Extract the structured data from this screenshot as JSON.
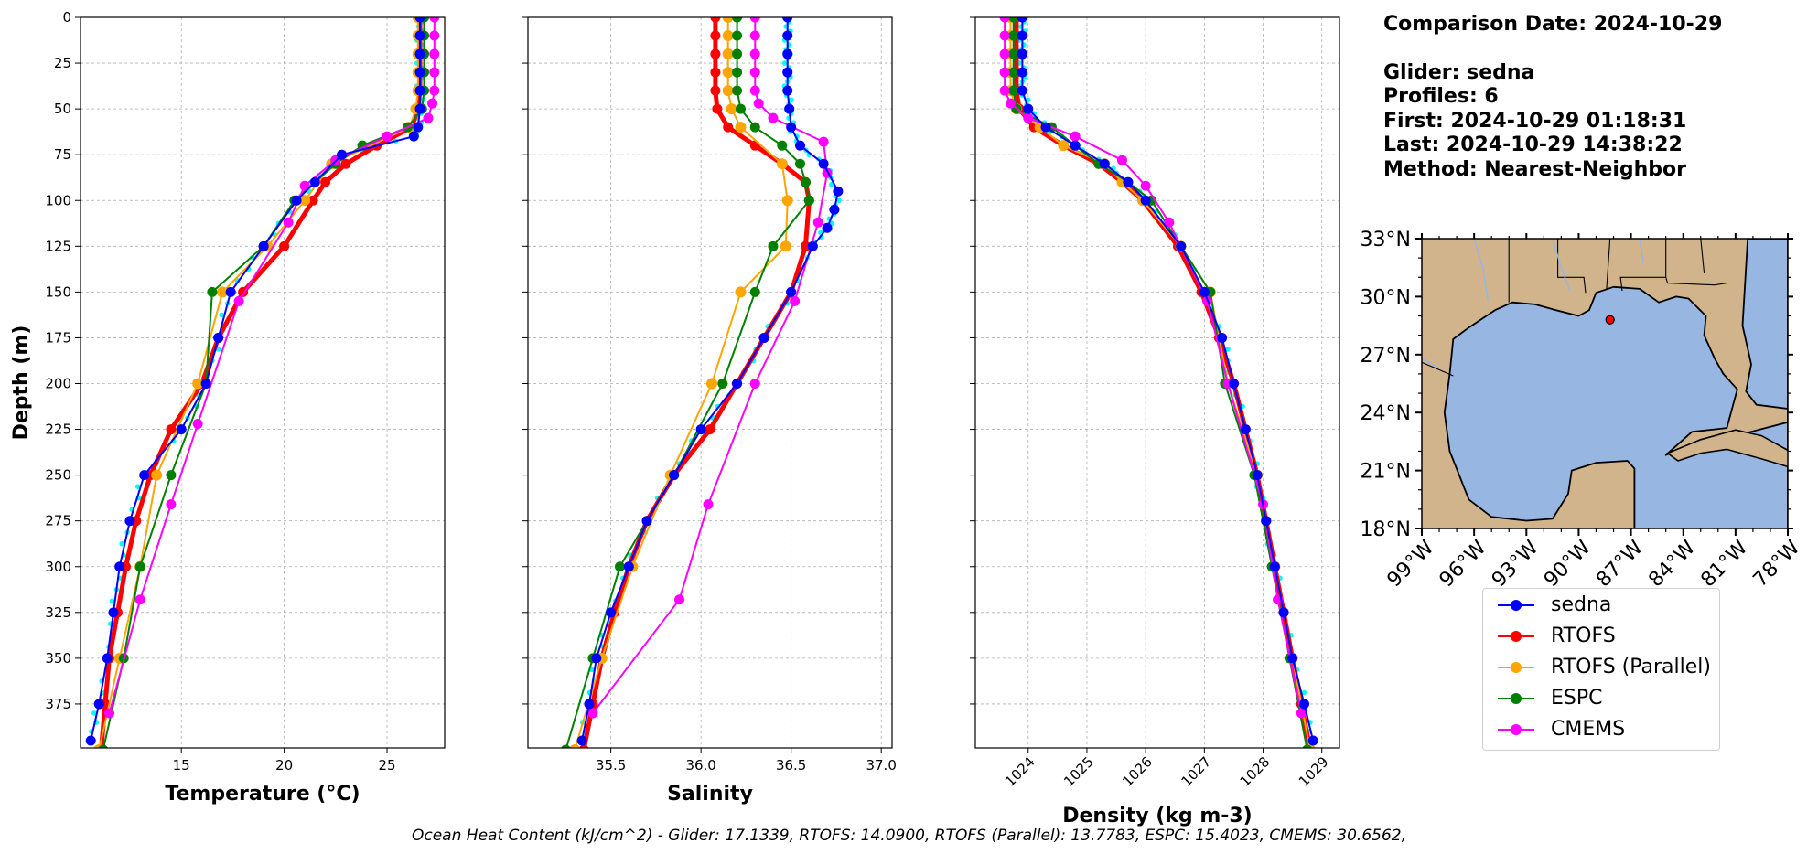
{
  "info": {
    "comparison": "Comparison Date: 2024-10-29",
    "glider": "Glider: sedna",
    "profiles": "Profiles: 6",
    "first": "First: 2024-10-29 01:18:31",
    "last": "Last: 2024-10-29 14:38:22",
    "method": "Method: Nearest-Neighbor"
  },
  "footer": "Ocean Heat Content (kJ/cm^2) - Glider: 17.1339,  RTOFS: 14.0900,  RTOFS (Parallel): 13.7783,  ESPC: 15.4023,  CMEMS: 30.6562,",
  "legend": [
    {
      "name": "sedna",
      "color": "#0000ff"
    },
    {
      "name": "RTOFS",
      "color": "#ff0000"
    },
    {
      "name": "RTOFS (Parallel)",
      "color": "#ffa500"
    },
    {
      "name": "ESPC",
      "color": "#008000"
    },
    {
      "name": "CMEMS",
      "color": "#ff00ff"
    }
  ],
  "chart_data": [
    {
      "type": "line",
      "xlabel": "Temperature (°C)",
      "ylabel": "Depth (m)",
      "xlim": [
        10.1,
        27.8
      ],
      "ylim": [
        399,
        0
      ],
      "invert_y": true,
      "xticks": [
        15,
        20,
        25
      ],
      "yticks": [
        0,
        25,
        50,
        75,
        100,
        125,
        150,
        175,
        200,
        225,
        250,
        275,
        300,
        325,
        350,
        375
      ],
      "grid": true,
      "series": [
        {
          "name": "sedna",
          "depth": [
            0,
            10,
            20,
            30,
            40,
            50,
            60,
            65,
            75,
            90,
            100,
            125,
            150,
            175,
            200,
            225,
            250,
            275,
            300,
            325,
            350,
            375,
            395
          ],
          "values": [
            26.6,
            26.6,
            26.6,
            26.6,
            26.6,
            26.6,
            26.5,
            26.3,
            22.8,
            21.5,
            20.6,
            19.0,
            17.4,
            16.8,
            16.2,
            15.0,
            13.2,
            12.5,
            12.0,
            11.7,
            11.4,
            11.0,
            10.6
          ]
        },
        {
          "name": "RTOFS",
          "depth": [
            0,
            10,
            20,
            30,
            40,
            50,
            60,
            70,
            80,
            90,
            100,
            125,
            150,
            175,
            200,
            225,
            250,
            275,
            300,
            325,
            350,
            375,
            400
          ],
          "values": [
            26.6,
            26.6,
            26.6,
            26.6,
            26.6,
            26.5,
            26.2,
            24.5,
            23.0,
            22.0,
            21.4,
            20.0,
            18.0,
            16.8,
            16.0,
            14.5,
            13.5,
            12.8,
            12.3,
            11.9,
            11.5,
            11.3,
            11.1
          ]
        },
        {
          "name": "RTOFS (Parallel)",
          "depth": [
            0,
            10,
            20,
            30,
            40,
            50,
            60,
            80,
            100,
            125,
            150,
            200,
            250,
            300,
            350,
            400
          ],
          "values": [
            26.5,
            26.5,
            26.5,
            26.5,
            26.5,
            26.4,
            26.1,
            22.3,
            21.0,
            19.2,
            17.0,
            15.8,
            13.8,
            13.0,
            12.0,
            11.0
          ]
        },
        {
          "name": "ESPC",
          "depth": [
            0,
            10,
            20,
            30,
            40,
            50,
            60,
            70,
            80,
            100,
            125,
            150,
            200,
            250,
            300,
            350,
            400
          ],
          "values": [
            26.8,
            26.8,
            26.8,
            26.8,
            26.8,
            26.7,
            26.0,
            23.8,
            22.5,
            20.5,
            19.0,
            16.5,
            16.2,
            14.5,
            13.0,
            12.2,
            11.2
          ]
        },
        {
          "name": "CMEMS",
          "depth": [
            0,
            10,
            20,
            30,
            40,
            47,
            55,
            65,
            78,
            92,
            112,
            155,
            222,
            266,
            318,
            380
          ],
          "values": [
            27.3,
            27.3,
            27.3,
            27.3,
            27.3,
            27.2,
            27.0,
            25.0,
            22.5,
            21.0,
            20.2,
            17.8,
            15.8,
            14.5,
            13.0,
            11.5
          ]
        }
      ]
    },
    {
      "type": "line",
      "xlabel": "Salinity",
      "xlim": [
        35.04,
        37.06
      ],
      "ylim": [
        399,
        0
      ],
      "invert_y": true,
      "xticks": [
        35.5,
        36.0,
        36.5,
        37.0
      ],
      "grid": true,
      "series": [
        {
          "name": "sedna",
          "depth": [
            0,
            10,
            20,
            30,
            40,
            50,
            60,
            70,
            80,
            95,
            105,
            115,
            125,
            150,
            175,
            200,
            225,
            250,
            275,
            300,
            325,
            350,
            375,
            395
          ],
          "values": [
            36.48,
            36.48,
            36.48,
            36.48,
            36.48,
            36.49,
            36.5,
            36.55,
            36.68,
            36.76,
            36.74,
            36.7,
            36.62,
            36.5,
            36.35,
            36.2,
            36.0,
            35.85,
            35.7,
            35.6,
            35.5,
            35.42,
            35.38,
            35.34
          ]
        },
        {
          "name": "RTOFS",
          "depth": [
            0,
            10,
            20,
            30,
            40,
            50,
            60,
            70,
            80,
            90,
            100,
            125,
            150,
            175,
            200,
            225,
            250,
            275,
            300,
            325,
            350,
            375,
            400
          ],
          "values": [
            36.08,
            36.08,
            36.08,
            36.08,
            36.08,
            36.09,
            36.15,
            36.3,
            36.45,
            36.58,
            36.6,
            36.58,
            36.5,
            36.35,
            36.2,
            36.05,
            35.85,
            35.7,
            35.6,
            35.52,
            35.45,
            35.4,
            35.35
          ]
        },
        {
          "name": "RTOFS (Parallel)",
          "depth": [
            0,
            10,
            20,
            30,
            40,
            50,
            60,
            80,
            100,
            125,
            150,
            200,
            250,
            300,
            350,
            400
          ],
          "values": [
            36.15,
            36.15,
            36.15,
            36.15,
            36.15,
            36.17,
            36.22,
            36.45,
            36.48,
            36.47,
            36.22,
            36.06,
            35.83,
            35.62,
            35.45,
            35.3
          ]
        },
        {
          "name": "ESPC",
          "depth": [
            0,
            10,
            20,
            30,
            40,
            50,
            60,
            70,
            80,
            90,
            100,
            125,
            150,
            200,
            250,
            300,
            350,
            400
          ],
          "values": [
            36.2,
            36.2,
            36.2,
            36.2,
            36.2,
            36.22,
            36.3,
            36.45,
            36.55,
            36.58,
            36.6,
            36.4,
            36.3,
            36.12,
            35.85,
            35.55,
            35.4,
            35.25
          ]
        },
        {
          "name": "CMEMS",
          "depth": [
            0,
            10,
            20,
            30,
            40,
            47,
            55,
            68,
            85,
            112,
            155,
            200,
            266,
            318,
            380
          ],
          "values": [
            36.3,
            36.3,
            36.3,
            36.3,
            36.3,
            36.32,
            36.4,
            36.68,
            36.7,
            36.65,
            36.52,
            36.3,
            36.04,
            35.88,
            35.4
          ]
        }
      ]
    },
    {
      "type": "line",
      "xlabel": "Density (kg m-3)",
      "xlim": [
        1023.1,
        1029.3
      ],
      "ylim": [
        399,
        0
      ],
      "invert_y": true,
      "xticks": [
        1024,
        1025,
        1026,
        1027,
        1028,
        1029
      ],
      "grid": true,
      "series": [
        {
          "name": "sedna",
          "depth": [
            0,
            10,
            20,
            30,
            40,
            50,
            60,
            70,
            80,
            90,
            100,
            125,
            150,
            175,
            200,
            225,
            250,
            275,
            300,
            325,
            350,
            375,
            395
          ],
          "values": [
            1023.9,
            1023.9,
            1023.9,
            1023.9,
            1023.9,
            1024.0,
            1024.3,
            1024.8,
            1025.3,
            1025.7,
            1026.0,
            1026.6,
            1027.0,
            1027.3,
            1027.5,
            1027.7,
            1027.9,
            1028.05,
            1028.2,
            1028.35,
            1028.5,
            1028.7,
            1028.85
          ]
        },
        {
          "name": "RTOFS",
          "depth": [
            0,
            10,
            20,
            30,
            40,
            50,
            60,
            70,
            80,
            90,
            100,
            125,
            150,
            175,
            200,
            225,
            250,
            275,
            300,
            325,
            350,
            375,
            400
          ],
          "values": [
            1023.8,
            1023.8,
            1023.8,
            1023.8,
            1023.8,
            1023.85,
            1024.1,
            1024.6,
            1025.2,
            1025.6,
            1025.95,
            1026.55,
            1026.95,
            1027.25,
            1027.5,
            1027.7,
            1027.9,
            1028.05,
            1028.2,
            1028.35,
            1028.5,
            1028.65,
            1028.8
          ]
        },
        {
          "name": "RTOFS (Parallel)",
          "depth": [
            0,
            10,
            20,
            30,
            40,
            50,
            60,
            70,
            80,
            90,
            100,
            125,
            150,
            200,
            250,
            300,
            350,
            400
          ],
          "values": [
            1023.7,
            1023.7,
            1023.7,
            1023.7,
            1023.7,
            1023.8,
            1024.2,
            1024.6,
            1025.3,
            1025.6,
            1025.95,
            1026.6,
            1027.1,
            1027.4,
            1027.9,
            1028.2,
            1028.5,
            1028.8
          ]
        },
        {
          "name": "ESPC",
          "depth": [
            0,
            10,
            20,
            30,
            40,
            50,
            60,
            70,
            80,
            90,
            100,
            125,
            150,
            200,
            250,
            300,
            350,
            400
          ],
          "values": [
            1023.75,
            1023.75,
            1023.75,
            1023.75,
            1023.75,
            1023.8,
            1024.4,
            1024.8,
            1025.2,
            1025.7,
            1026.1,
            1026.6,
            1027.1,
            1027.35,
            1027.85,
            1028.15,
            1028.45,
            1028.75
          ]
        },
        {
          "name": "CMEMS",
          "depth": [
            0,
            10,
            20,
            30,
            40,
            47,
            55,
            65,
            78,
            92,
            112,
            155,
            200,
            266,
            318,
            380
          ],
          "values": [
            1023.6,
            1023.6,
            1023.6,
            1023.6,
            1023.6,
            1023.7,
            1024.0,
            1024.8,
            1025.6,
            1026.0,
            1026.4,
            1027.05,
            1027.4,
            1028.0,
            1028.25,
            1028.65
          ]
        }
      ]
    },
    {
      "type": "map",
      "lat_ticks": [
        "33°N",
        "30°N",
        "27°N",
        "24°N",
        "21°N",
        "18°N"
      ],
      "lon_ticks": [
        "99°W",
        "96°W",
        "93°W",
        "90°W",
        "87°W",
        "84°W",
        "81°W",
        "78°W"
      ],
      "extent": {
        "lon": [
          -99,
          -78
        ],
        "lat": [
          18,
          33
        ]
      },
      "marker": {
        "lon": -88.2,
        "lat": 28.8
      }
    }
  ]
}
